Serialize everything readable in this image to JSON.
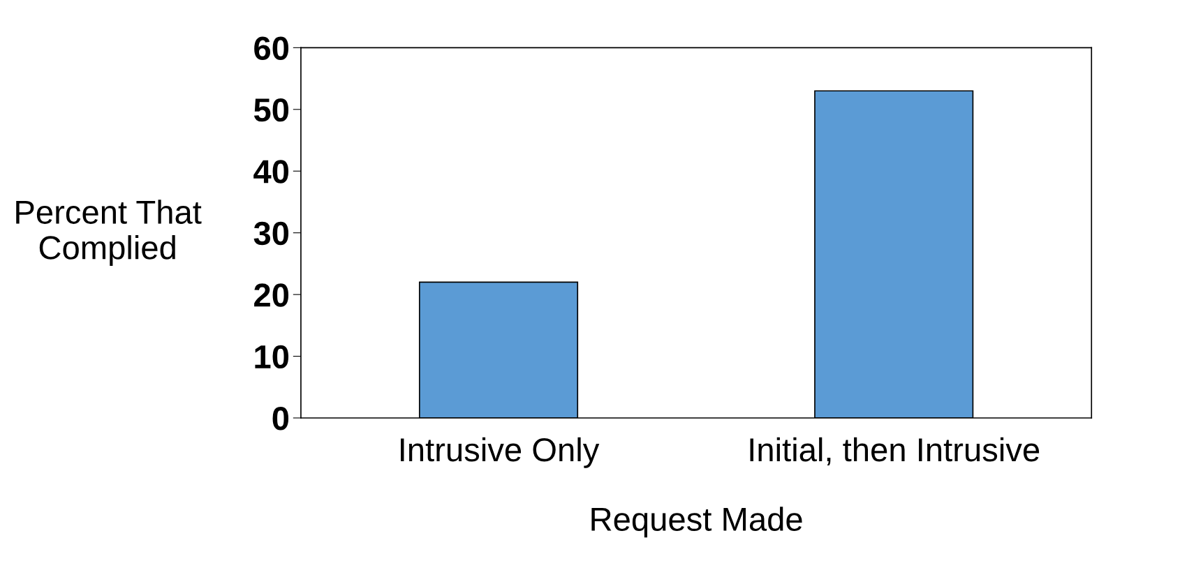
{
  "chart_data": {
    "type": "bar",
    "xlabel": "Request Made",
    "ylabel": "Percent That\nComplied",
    "categories": [
      "Intrusive Only",
      "Initial, then Intrusive"
    ],
    "values": [
      22,
      53
    ],
    "color": "#5b9bd5",
    "ylim": [
      0,
      60
    ],
    "yticks": [
      0,
      10,
      20,
      30,
      40,
      50,
      60
    ],
    "grid": false
  }
}
